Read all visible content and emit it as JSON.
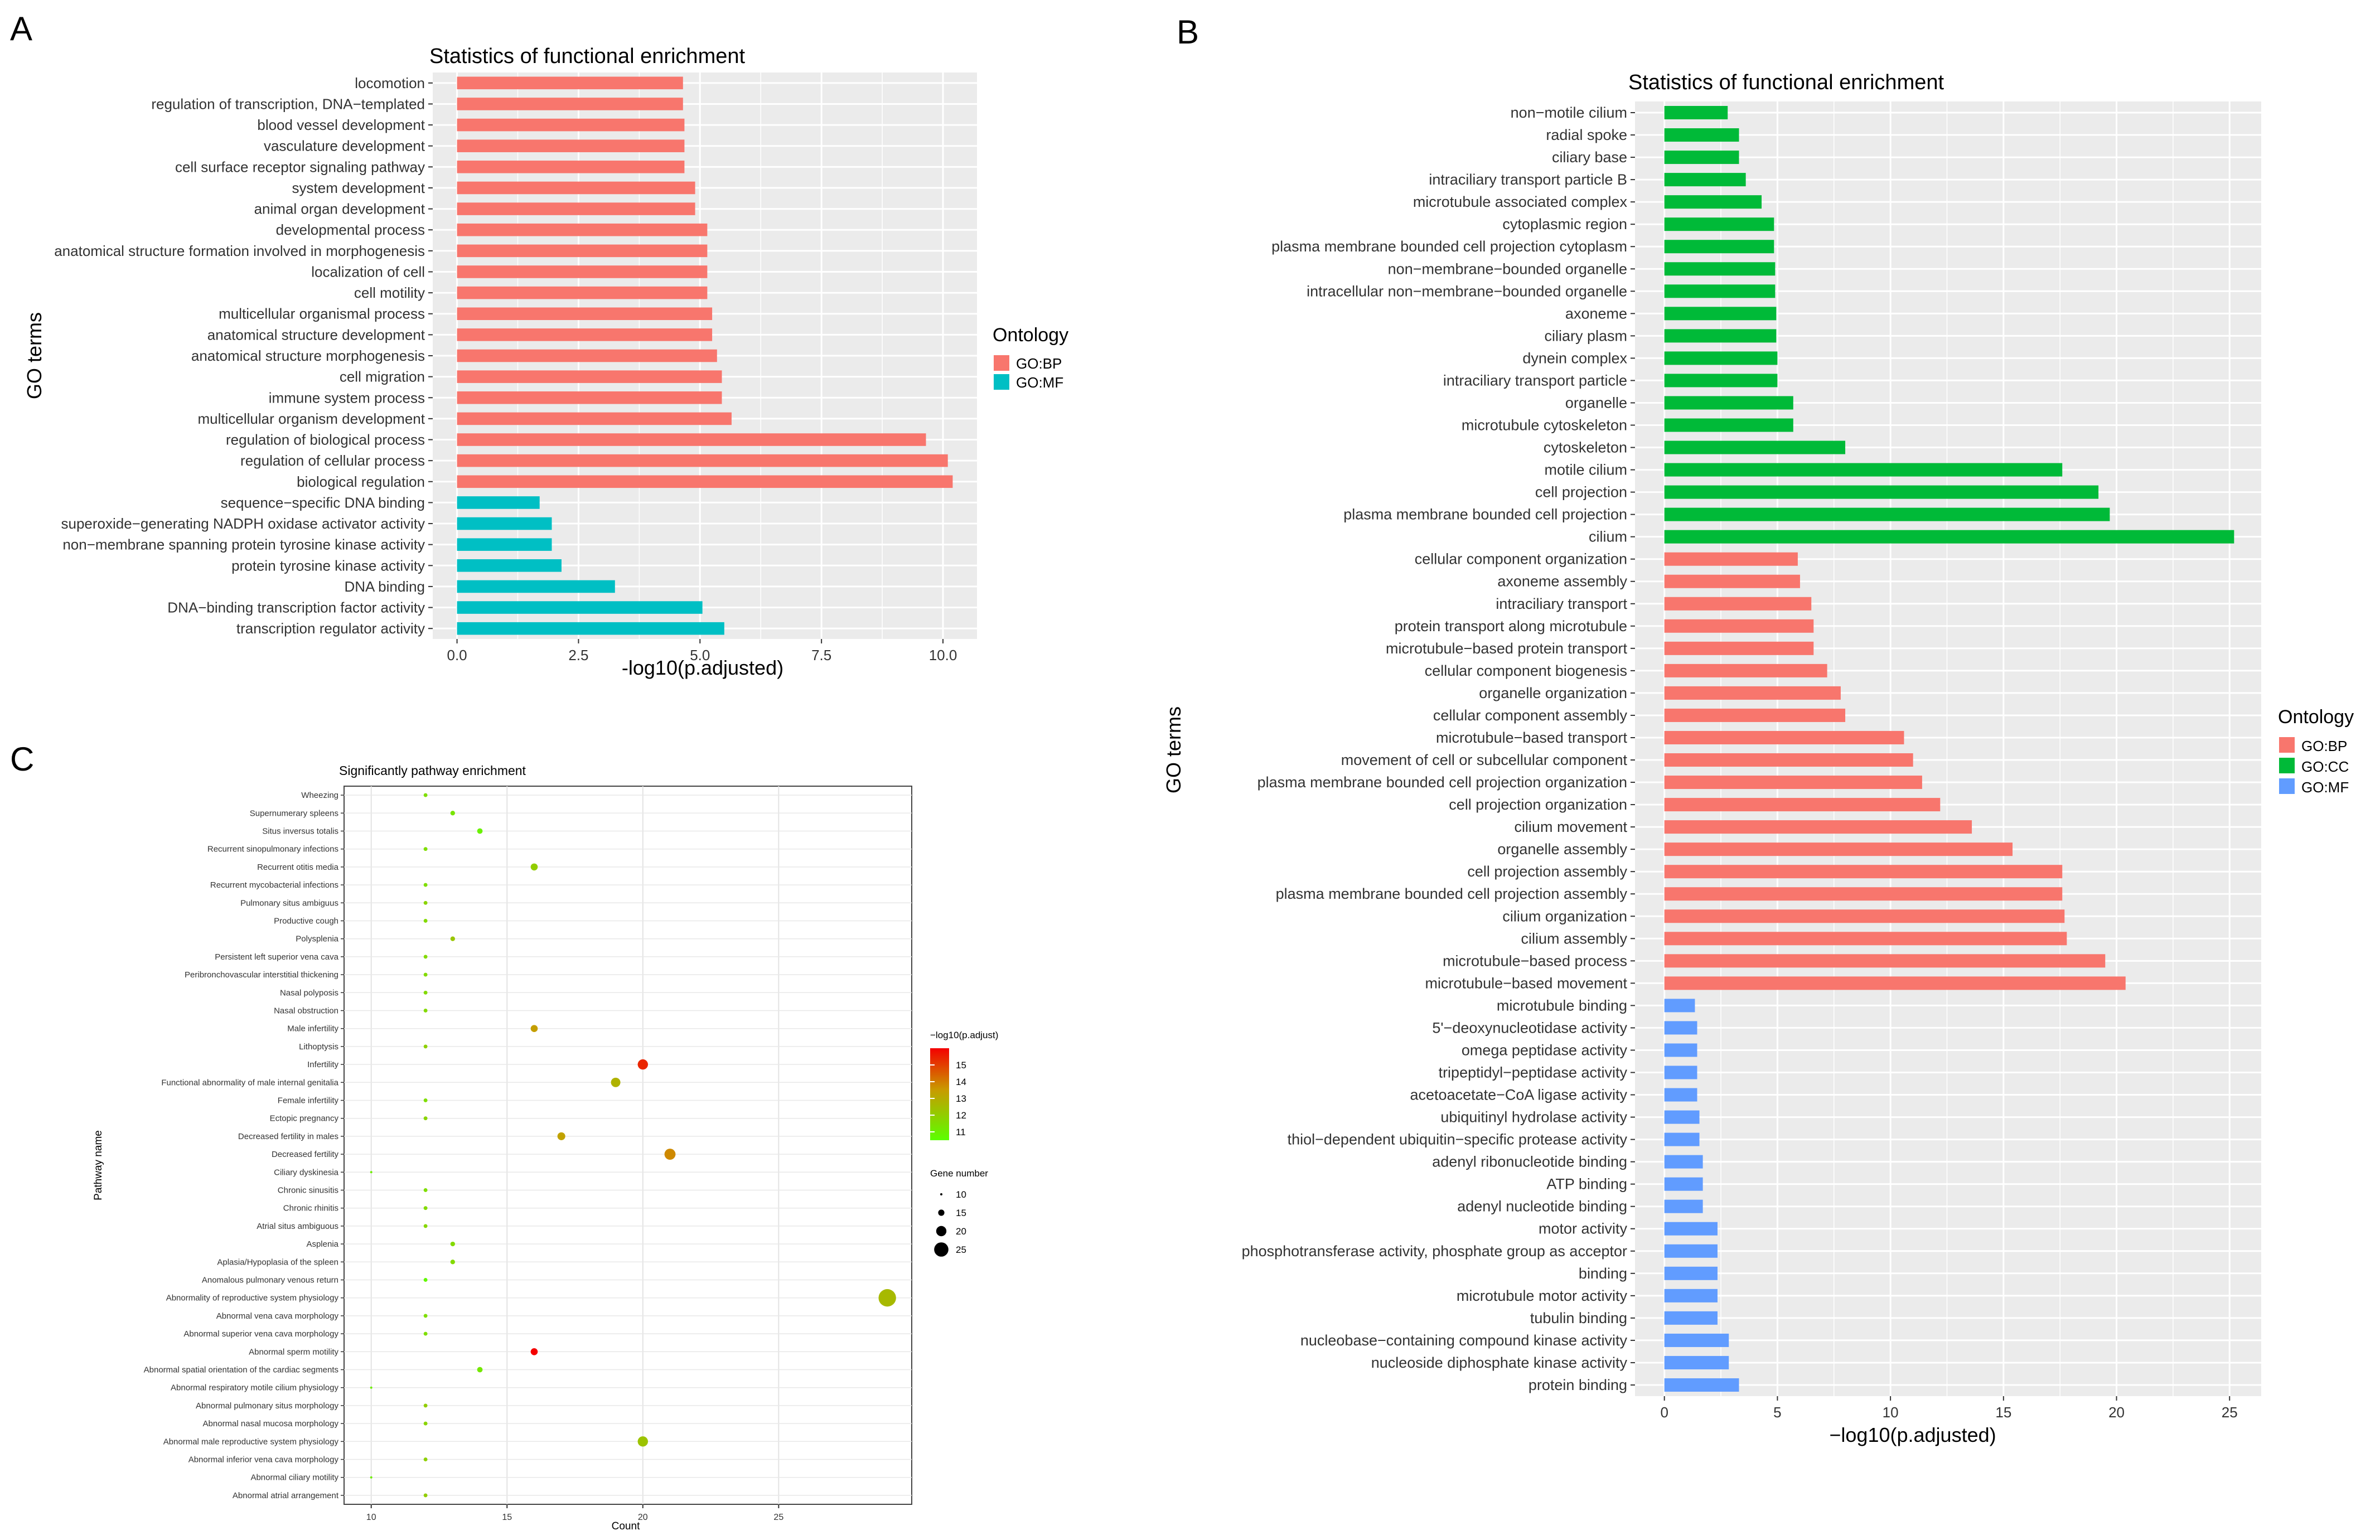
{
  "panels": {
    "a": "A",
    "b": "B",
    "c": "C"
  },
  "chart_data": [
    {
      "type": "bar",
      "orientation": "horizontal",
      "panel": "A",
      "title": "Statistics of functional enrichment",
      "xlabel": "-log10(p.adjusted)",
      "ylabel": "GO terms",
      "xlim": [
        -0.5,
        10.7
      ],
      "xticks": [
        "0.0",
        "2.5",
        "5.0",
        "7.5",
        "10.0"
      ],
      "legend_title": "Ontology",
      "legend": [
        {
          "name": "GO:BP",
          "color": "#F8766D"
        },
        {
          "name": "GO:MF",
          "color": "#00BFC4"
        }
      ],
      "bars": [
        {
          "term": "locomotion",
          "value": 4.65,
          "ontology": "GO:BP"
        },
        {
          "term": "regulation of transcription, DNA−templated",
          "value": 4.65,
          "ontology": "GO:BP"
        },
        {
          "term": "blood vessel development",
          "value": 4.68,
          "ontology": "GO:BP"
        },
        {
          "term": "vasculature development",
          "value": 4.68,
          "ontology": "GO:BP"
        },
        {
          "term": "cell surface receptor signaling pathway",
          "value": 4.68,
          "ontology": "GO:BP"
        },
        {
          "term": "system development",
          "value": 4.9,
          "ontology": "GO:BP"
        },
        {
          "term": "animal organ development",
          "value": 4.9,
          "ontology": "GO:BP"
        },
        {
          "term": "developmental process",
          "value": 5.15,
          "ontology": "GO:BP"
        },
        {
          "term": "anatomical structure formation involved in morphogenesis",
          "value": 5.15,
          "ontology": "GO:BP"
        },
        {
          "term": "localization of cell",
          "value": 5.15,
          "ontology": "GO:BP"
        },
        {
          "term": "cell motility",
          "value": 5.15,
          "ontology": "GO:BP"
        },
        {
          "term": "multicellular organismal process",
          "value": 5.25,
          "ontology": "GO:BP"
        },
        {
          "term": "anatomical structure development",
          "value": 5.25,
          "ontology": "GO:BP"
        },
        {
          "term": "anatomical structure morphogenesis",
          "value": 5.35,
          "ontology": "GO:BP"
        },
        {
          "term": "cell migration",
          "value": 5.45,
          "ontology": "GO:BP"
        },
        {
          "term": "immune system process",
          "value": 5.45,
          "ontology": "GO:BP"
        },
        {
          "term": "multicellular organism development",
          "value": 5.65,
          "ontology": "GO:BP"
        },
        {
          "term": "regulation of biological process",
          "value": 9.65,
          "ontology": "GO:BP"
        },
        {
          "term": "regulation of cellular process",
          "value": 10.1,
          "ontology": "GO:BP"
        },
        {
          "term": "biological regulation",
          "value": 10.2,
          "ontology": "GO:BP"
        },
        {
          "term": "sequence−specific DNA binding",
          "value": 1.7,
          "ontology": "GO:MF"
        },
        {
          "term": "superoxide−generating NADPH oxidase activator activity",
          "value": 1.95,
          "ontology": "GO:MF"
        },
        {
          "term": "non−membrane spanning protein tyrosine kinase activity",
          "value": 1.95,
          "ontology": "GO:MF"
        },
        {
          "term": "protein tyrosine kinase activity",
          "value": 2.15,
          "ontology": "GO:MF"
        },
        {
          "term": "DNA binding",
          "value": 3.25,
          "ontology": "GO:MF"
        },
        {
          "term": "DNA−binding transcription factor activity",
          "value": 5.05,
          "ontology": "GO:MF"
        },
        {
          "term": "transcription regulator activity",
          "value": 5.5,
          "ontology": "GO:MF"
        }
      ]
    },
    {
      "type": "bar",
      "orientation": "horizontal",
      "panel": "B",
      "title": "Statistics of functional enrichment",
      "xlabel": "−log10(p.adjusted)",
      "ylabel": "GO terms",
      "xlim": [
        -1.3,
        26.4
      ],
      "xticks": [
        "0",
        "5",
        "10",
        "15",
        "20",
        "25"
      ],
      "legend_title": "Ontology",
      "legend": [
        {
          "name": "GO:BP",
          "color": "#F8766D"
        },
        {
          "name": "GO:CC",
          "color": "#00BA38"
        },
        {
          "name": "GO:MF",
          "color": "#619CFF"
        }
      ],
      "bars": [
        {
          "term": "non−motile cilium",
          "value": 2.8,
          "ontology": "GO:CC"
        },
        {
          "term": "radial spoke",
          "value": 3.3,
          "ontology": "GO:CC"
        },
        {
          "term": "ciliary base",
          "value": 3.3,
          "ontology": "GO:CC"
        },
        {
          "term": "intraciliary transport particle B",
          "value": 3.6,
          "ontology": "GO:CC"
        },
        {
          "term": "microtubule associated complex",
          "value": 4.3,
          "ontology": "GO:CC"
        },
        {
          "term": "cytoplasmic region",
          "value": 4.85,
          "ontology": "GO:CC"
        },
        {
          "term": "plasma membrane bounded cell projection cytoplasm",
          "value": 4.85,
          "ontology": "GO:CC"
        },
        {
          "term": "non−membrane−bounded organelle",
          "value": 4.9,
          "ontology": "GO:CC"
        },
        {
          "term": "intracellular non−membrane−bounded organelle",
          "value": 4.9,
          "ontology": "GO:CC"
        },
        {
          "term": "axoneme",
          "value": 4.95,
          "ontology": "GO:CC"
        },
        {
          "term": "ciliary plasm",
          "value": 4.95,
          "ontology": "GO:CC"
        },
        {
          "term": "dynein complex",
          "value": 5.0,
          "ontology": "GO:CC"
        },
        {
          "term": "intraciliary transport particle",
          "value": 5.0,
          "ontology": "GO:CC"
        },
        {
          "term": "organelle",
          "value": 5.7,
          "ontology": "GO:CC"
        },
        {
          "term": "microtubule cytoskeleton",
          "value": 5.7,
          "ontology": "GO:CC"
        },
        {
          "term": "cytoskeleton",
          "value": 8.0,
          "ontology": "GO:CC"
        },
        {
          "term": "motile cilium",
          "value": 17.6,
          "ontology": "GO:CC"
        },
        {
          "term": "cell projection",
          "value": 19.2,
          "ontology": "GO:CC"
        },
        {
          "term": "plasma membrane bounded cell projection",
          "value": 19.7,
          "ontology": "GO:CC"
        },
        {
          "term": "cilium",
          "value": 25.2,
          "ontology": "GO:CC"
        },
        {
          "term": "cellular component organization",
          "value": 5.9,
          "ontology": "GO:BP"
        },
        {
          "term": "axoneme assembly",
          "value": 6.0,
          "ontology": "GO:BP"
        },
        {
          "term": "intraciliary transport",
          "value": 6.5,
          "ontology": "GO:BP"
        },
        {
          "term": "protein transport along microtubule",
          "value": 6.6,
          "ontology": "GO:BP"
        },
        {
          "term": "microtubule−based protein transport",
          "value": 6.6,
          "ontology": "GO:BP"
        },
        {
          "term": "cellular component biogenesis",
          "value": 7.2,
          "ontology": "GO:BP"
        },
        {
          "term": "organelle organization",
          "value": 7.8,
          "ontology": "GO:BP"
        },
        {
          "term": "cellular component assembly",
          "value": 8.0,
          "ontology": "GO:BP"
        },
        {
          "term": "microtubule−based transport",
          "value": 10.6,
          "ontology": "GO:BP"
        },
        {
          "term": "movement of cell or subcellular component",
          "value": 11.0,
          "ontology": "GO:BP"
        },
        {
          "term": "plasma membrane bounded cell projection organization",
          "value": 11.4,
          "ontology": "GO:BP"
        },
        {
          "term": "cell projection organization",
          "value": 12.2,
          "ontology": "GO:BP"
        },
        {
          "term": "cilium movement",
          "value": 13.6,
          "ontology": "GO:BP"
        },
        {
          "term": "organelle assembly",
          "value": 15.4,
          "ontology": "GO:BP"
        },
        {
          "term": "cell projection assembly",
          "value": 17.6,
          "ontology": "GO:BP"
        },
        {
          "term": "plasma membrane bounded cell projection assembly",
          "value": 17.6,
          "ontology": "GO:BP"
        },
        {
          "term": "cilium organization",
          "value": 17.7,
          "ontology": "GO:BP"
        },
        {
          "term": "cilium assembly",
          "value": 17.8,
          "ontology": "GO:BP"
        },
        {
          "term": "microtubule−based process",
          "value": 19.5,
          "ontology": "GO:BP"
        },
        {
          "term": "microtubule−based movement",
          "value": 20.4,
          "ontology": "GO:BP"
        },
        {
          "term": "microtubule binding",
          "value": 1.35,
          "ontology": "GO:MF"
        },
        {
          "term": "5'−deoxynucleotidase activity",
          "value": 1.45,
          "ontology": "GO:MF"
        },
        {
          "term": "omega peptidase activity",
          "value": 1.45,
          "ontology": "GO:MF"
        },
        {
          "term": "tripeptidyl−peptidase activity",
          "value": 1.45,
          "ontology": "GO:MF"
        },
        {
          "term": "acetoacetate−CoA ligase activity",
          "value": 1.45,
          "ontology": "GO:MF"
        },
        {
          "term": "ubiquitinyl hydrolase activity",
          "value": 1.55,
          "ontology": "GO:MF"
        },
        {
          "term": "thiol−dependent ubiquitin−specific protease activity",
          "value": 1.55,
          "ontology": "GO:MF"
        },
        {
          "term": "adenyl ribonucleotide binding",
          "value": 1.7,
          "ontology": "GO:MF"
        },
        {
          "term": "ATP binding",
          "value": 1.7,
          "ontology": "GO:MF"
        },
        {
          "term": "adenyl nucleotide binding",
          "value": 1.7,
          "ontology": "GO:MF"
        },
        {
          "term": "motor activity",
          "value": 2.35,
          "ontology": "GO:MF"
        },
        {
          "term": "phosphotransferase activity, phosphate group as acceptor",
          "value": 2.35,
          "ontology": "GO:MF"
        },
        {
          "term": "binding",
          "value": 2.35,
          "ontology": "GO:MF"
        },
        {
          "term": "microtubule motor activity",
          "value": 2.35,
          "ontology": "GO:MF"
        },
        {
          "term": "tubulin binding",
          "value": 2.35,
          "ontology": "GO:MF"
        },
        {
          "term": "nucleobase−containing compound kinase activity",
          "value": 2.85,
          "ontology": "GO:MF"
        },
        {
          "term": "nucleoside diphosphate kinase activity",
          "value": 2.85,
          "ontology": "GO:MF"
        },
        {
          "term": "protein binding",
          "value": 3.3,
          "ontology": "GO:MF"
        }
      ]
    },
    {
      "type": "scatter",
      "panel": "C",
      "title": "Significantly pathway enrichment",
      "xlabel": "Count",
      "ylabel": "Pathway name",
      "xlim": [
        9,
        29.9
      ],
      "xticks": [
        "10",
        "15",
        "20",
        "25"
      ],
      "color_legend_title": "−log10(p.adjust)",
      "color_ticks": [
        "15",
        "14",
        "13",
        "12",
        "11"
      ],
      "color_range": [
        10.5,
        16
      ],
      "size_legend_title": "Gene number",
      "size_ticks": [
        "10",
        "15",
        "20",
        "25"
      ],
      "points": [
        {
          "pathway": "Wheezing",
          "count": 12,
          "log10p": 11.5
        },
        {
          "pathway": "Supernumerary spleens",
          "count": 13,
          "log10p": 11.3
        },
        {
          "pathway": "Situs inversus totalis",
          "count": 14,
          "log10p": 10.9
        },
        {
          "pathway": "Recurrent sinopulmonary infections",
          "count": 12,
          "log10p": 11.5
        },
        {
          "pathway": "Recurrent otitis media",
          "count": 16,
          "log10p": 12.0
        },
        {
          "pathway": "Recurrent mycobacterial infections",
          "count": 12,
          "log10p": 11.5
        },
        {
          "pathway": "Pulmonary situs ambiguus",
          "count": 12,
          "log10p": 11.8
        },
        {
          "pathway": "Productive cough",
          "count": 12,
          "log10p": 11.6
        },
        {
          "pathway": "Polysplenia",
          "count": 13,
          "log10p": 12.2
        },
        {
          "pathway": "Persistent left superior vena cava",
          "count": 12,
          "log10p": 11.6
        },
        {
          "pathway": "Peribronchovascular interstitial thickening",
          "count": 12,
          "log10p": 11.6
        },
        {
          "pathway": "Nasal polyposis",
          "count": 12,
          "log10p": 11.6
        },
        {
          "pathway": "Nasal obstruction",
          "count": 12,
          "log10p": 11.6
        },
        {
          "pathway": "Male infertility",
          "count": 16,
          "log10p": 13.4
        },
        {
          "pathway": "Lithoptysis",
          "count": 12,
          "log10p": 11.9
        },
        {
          "pathway": "Infertility",
          "count": 20,
          "log10p": 15.4
        },
        {
          "pathway": "Functional abnormality of male internal genitalia",
          "count": 19,
          "log10p": 12.8
        },
        {
          "pathway": "Female infertility",
          "count": 12,
          "log10p": 11.5
        },
        {
          "pathway": "Ectopic pregnancy",
          "count": 12,
          "log10p": 11.8
        },
        {
          "pathway": "Decreased fertility in males",
          "count": 17,
          "log10p": 13.3
        },
        {
          "pathway": "Decreased fertility",
          "count": 21,
          "log10p": 13.8
        },
        {
          "pathway": "Ciliary dyskinesia",
          "count": 10,
          "log10p": 11.0
        },
        {
          "pathway": "Chronic sinusitis",
          "count": 12,
          "log10p": 11.5
        },
        {
          "pathway": "Chronic rhinitis",
          "count": 12,
          "log10p": 11.6
        },
        {
          "pathway": "Atrial situs ambiguous",
          "count": 12,
          "log10p": 11.7
        },
        {
          "pathway": "Asplenia",
          "count": 13,
          "log10p": 11.6
        },
        {
          "pathway": "Aplasia/Hypoplasia of the spleen",
          "count": 13,
          "log10p": 11.6
        },
        {
          "pathway": "Anomalous pulmonary venous return",
          "count": 12,
          "log10p": 10.7
        },
        {
          "pathway": "Abnormality of reproductive system physiology",
          "count": 29,
          "log10p": 12.6
        },
        {
          "pathway": "Abnormal vena cava morphology",
          "count": 12,
          "log10p": 11.5
        },
        {
          "pathway": "Abnormal superior vena cava morphology",
          "count": 12,
          "log10p": 11.5
        },
        {
          "pathway": "Abnormal sperm motility",
          "count": 16,
          "log10p": 16.0
        },
        {
          "pathway": "Abnormal spatial orientation of the cardiac segments",
          "count": 14,
          "log10p": 11.2
        },
        {
          "pathway": "Abnormal respiratory motile cilium physiology",
          "count": 10,
          "log10p": 11.0
        },
        {
          "pathway": "Abnormal pulmonary situs morphology",
          "count": 12,
          "log10p": 12.0
        },
        {
          "pathway": "Abnormal nasal mucosa morphology",
          "count": 12,
          "log10p": 11.8
        },
        {
          "pathway": "Abnormal male reproductive system physiology",
          "count": 20,
          "log10p": 12.3
        },
        {
          "pathway": "Abnormal inferior vena cava morphology",
          "count": 12,
          "log10p": 11.9
        },
        {
          "pathway": "Abnormal ciliary motility",
          "count": 10,
          "log10p": 11.0
        },
        {
          "pathway": "Abnormal atrial arrangement",
          "count": 12,
          "log10p": 12.0
        }
      ]
    }
  ]
}
